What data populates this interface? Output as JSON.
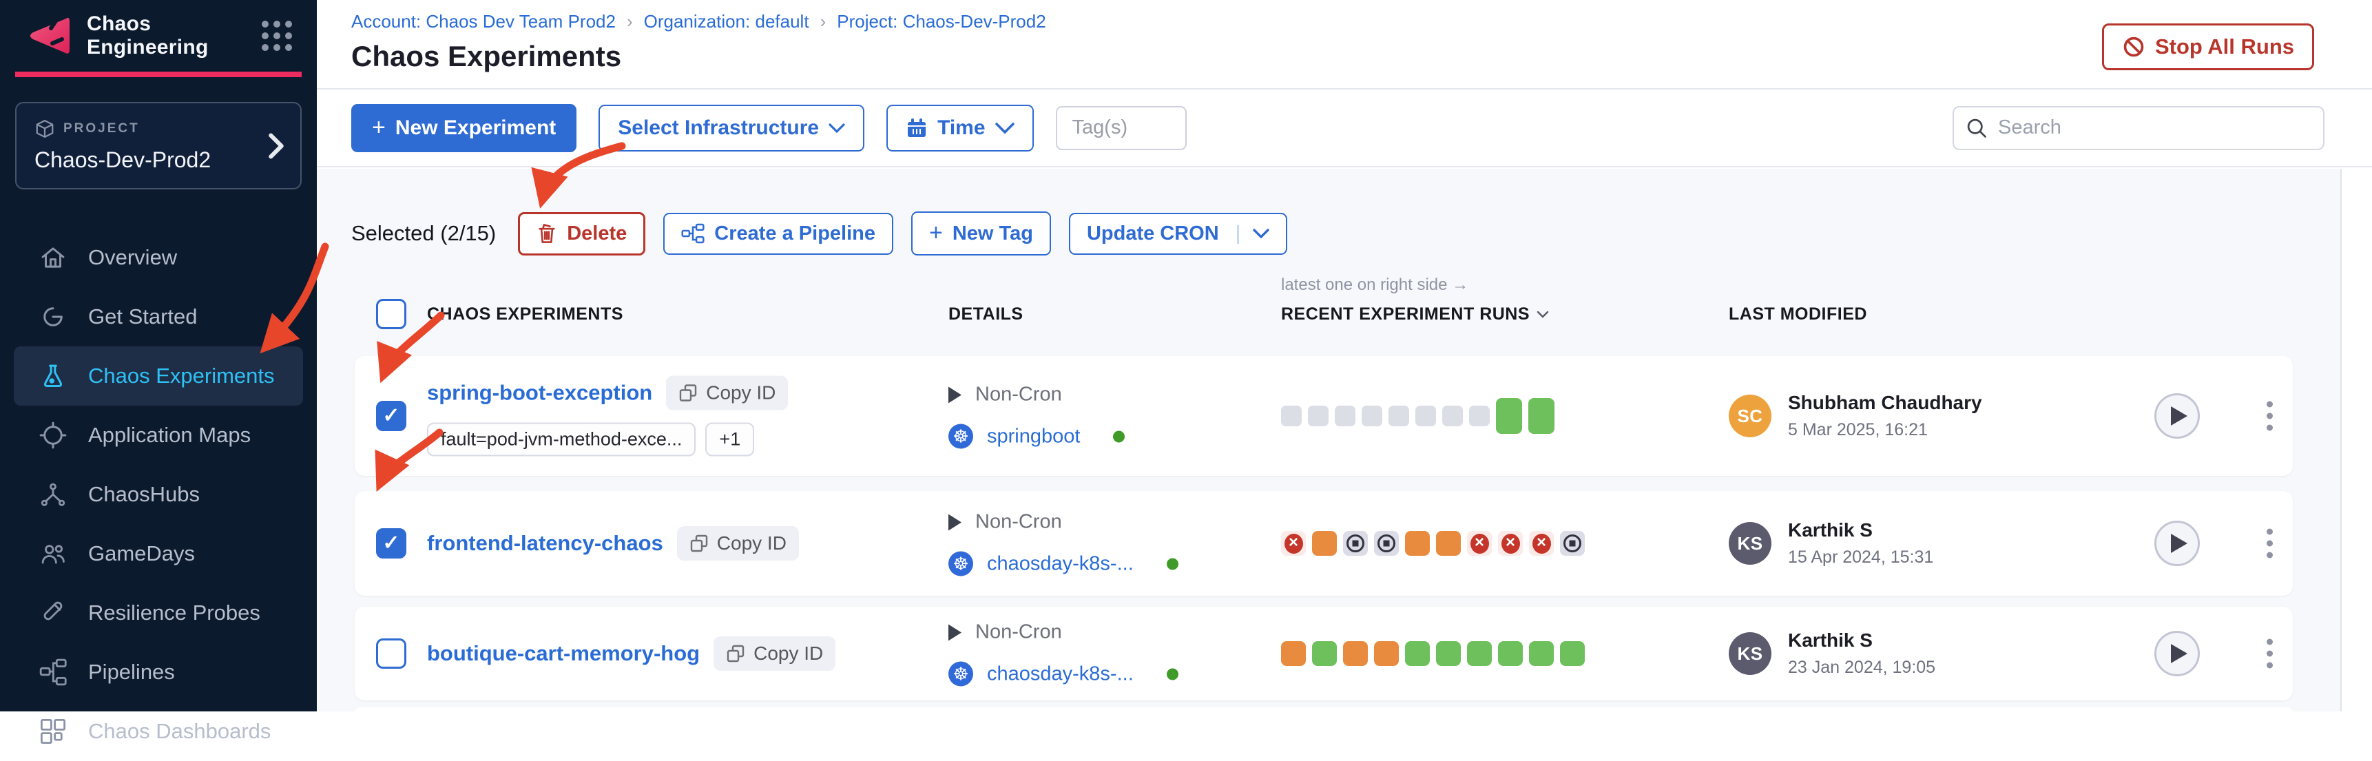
{
  "colors": {
    "accent_blue": "#2e6bd2",
    "danger_red": "#b8352b",
    "annotation_red": "#e8462b",
    "brand_pink": "#ee2c5f",
    "sidebar_bg": "#0c1a2d",
    "active_nav_text": "#2ec1f5",
    "run_empty": "#dcdee6",
    "run_success": "#6ec05c",
    "run_warning": "#e98b3e",
    "run_failed": "#c5352a",
    "run_stopped": "#30333f",
    "infra_status_green": "#3f9a27"
  },
  "sidebar": {
    "app_title": "Chaos Engineering",
    "project_label": "PROJECT",
    "project_name": "Chaos-Dev-Prod2",
    "nav": [
      {
        "id": "overview",
        "icon": "home",
        "label": "Overview",
        "active": false
      },
      {
        "id": "get-started",
        "icon": "get-started",
        "label": "Get Started",
        "active": false
      },
      {
        "id": "chaos-experiments",
        "icon": "flask",
        "label": "Chaos Experiments",
        "active": true
      },
      {
        "id": "application-maps",
        "icon": "target",
        "label": "Application Maps",
        "active": false
      },
      {
        "id": "chaoshubs",
        "icon": "network",
        "label": "ChaosHubs",
        "active": false
      },
      {
        "id": "gamedays",
        "icon": "people",
        "label": "GameDays",
        "active": false
      },
      {
        "id": "resilience-probes",
        "icon": "probe",
        "label": "Resilience Probes",
        "active": false
      },
      {
        "id": "pipelines",
        "icon": "pipeline",
        "label": "Pipelines",
        "active": false
      },
      {
        "id": "chaos-dashboards",
        "icon": "dashboard",
        "label": "Chaos Dashboards",
        "active": false
      }
    ]
  },
  "header": {
    "breadcrumbs": [
      "Account: Chaos Dev Team Prod2",
      "Organization: default",
      "Project: Chaos-Dev-Prod2"
    ],
    "separator": "›",
    "title": "Chaos Experiments",
    "stop_all_label": "Stop All Runs"
  },
  "toolbar": {
    "new_experiment": "New Experiment",
    "select_infrastructure": "Select Infrastructure",
    "time": "Time",
    "tags_placeholder": "Tag(s)",
    "search_placeholder": "Search"
  },
  "selection": {
    "label": "Selected (2/15)",
    "delete": "Delete",
    "create_pipeline": "Create a Pipeline",
    "new_tag": "New Tag",
    "update_cron": "Update CRON",
    "update_cron_divider": "|"
  },
  "table": {
    "runs_note": "latest one on right side →",
    "copy_label": "Copy ID",
    "headers": {
      "experiments": "CHAOS EXPERIMENTS",
      "details": "DETAILS",
      "runs": "RECENT EXPERIMENT RUNS",
      "modified": "LAST MODIFIED"
    }
  },
  "rows": [
    {
      "name": "spring-boot-exception",
      "checked": true,
      "tags": [
        "fault=pod-jvm-method-exce...",
        "+1"
      ],
      "schedule": "Non-Cron",
      "infrastructure": "springboot",
      "infra_status": "active",
      "runs": [
        "empty",
        "empty",
        "empty",
        "empty",
        "empty",
        "empty",
        "empty",
        "empty",
        "success_tall",
        "success_tall"
      ],
      "modified_by": "Shubham Chaudhary",
      "initials": "SC",
      "avatar_color": "#eea23d",
      "modified_date": "5 Mar 2025, 16:21"
    },
    {
      "name": "frontend-latency-chaos",
      "checked": true,
      "tags": [],
      "schedule": "Non-Cron",
      "infrastructure": "chaosday-k8s-...",
      "infra_status": "active",
      "runs": [
        "failed",
        "warning",
        "stopped",
        "stopped",
        "warning",
        "warning",
        "failed",
        "failed",
        "failed",
        "stopped"
      ],
      "modified_by": "Karthik S",
      "initials": "KS",
      "avatar_color": "#5c5b6e",
      "modified_date": "15 Apr 2024, 15:31"
    },
    {
      "name": "boutique-cart-memory-hog",
      "checked": false,
      "tags": [],
      "schedule": "Non-Cron",
      "infrastructure": "chaosday-k8s-...",
      "infra_status": "active",
      "runs": [
        "warning",
        "success",
        "warning",
        "warning",
        "success",
        "success",
        "success",
        "success",
        "success",
        "success"
      ],
      "modified_by": "Karthik S",
      "initials": "KS",
      "avatar_color": "#5c5b6e",
      "modified_date": "23 Jan 2024, 19:05"
    }
  ]
}
